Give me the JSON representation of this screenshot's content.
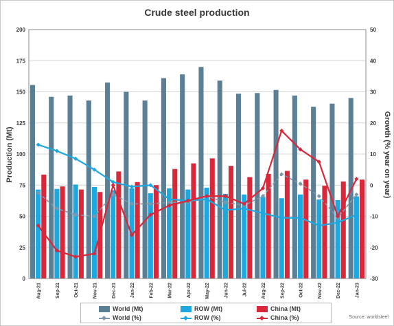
{
  "chart_data": {
    "type": "bar",
    "title": "Crude steel production",
    "ylabel_left": "Production (Mt)",
    "ylabel_right": "Growth (% year on year)",
    "ylim_left": [
      0,
      200
    ],
    "ylim_right": [
      -30,
      50
    ],
    "yticks_left": [
      "0",
      "25",
      "50",
      "75",
      "100",
      "125",
      "150",
      "175",
      "200"
    ],
    "yticks_right": [
      "-30",
      "-20",
      "-10",
      "0",
      "10",
      "20",
      "30",
      "40",
      "50"
    ],
    "categories": [
      "Aug-21",
      "Sep-21",
      "Oct-21",
      "Nov-21",
      "Dec-21",
      "Jan-22",
      "Feb-22",
      "Mar-22",
      "Apr-22",
      "May-22",
      "Jun-22",
      "Jul-22",
      "Aug-22",
      "Sep-22",
      "Oct-22",
      "Nov-22",
      "Dec-22",
      "Jan-23"
    ],
    "bar_series": [
      {
        "name": "World (Mt)",
        "color": "#5b7f95",
        "values": [
          155.5,
          146,
          147,
          143,
          157.5,
          150,
          143,
          161,
          164,
          170,
          159,
          148.5,
          149,
          151.5,
          147,
          138,
          140.5,
          145
        ]
      },
      {
        "name": "ROW (Mt)",
        "color": "#1ea8e0",
        "values": [
          71.5,
          72,
          75.5,
          73.5,
          71,
          72.5,
          68.5,
          72.5,
          71.5,
          73,
          68,
          67.5,
          65.5,
          64.5,
          67.5,
          63.5,
          63,
          66
        ]
      },
      {
        "name": "China (Mt)",
        "color": "#d8283a",
        "values": [
          83.5,
          74,
          71.5,
          69.5,
          86,
          77.5,
          75,
          88,
          92.5,
          96.5,
          90.5,
          81.5,
          84,
          86.5,
          79.5,
          74.5,
          78,
          79.5
        ]
      }
    ],
    "line_series": [
      {
        "name": "World (%)",
        "color": "#7d98ab",
        "values": [
          -2.5,
          -7.5,
          -9.5,
          -10,
          -3,
          -6,
          -6,
          -5.5,
          -5.5,
          -3.5,
          -5.5,
          -6.5,
          -3.5,
          3.5,
          0.5,
          -3.5,
          -10.5,
          -3
        ]
      },
      {
        "name": "ROW (%)",
        "color": "#1ea8e0",
        "values": [
          13,
          11,
          8.5,
          5,
          1,
          -0.5,
          0,
          -4.5,
          -5,
          -4.5,
          -8,
          -7.5,
          -9,
          -10.5,
          -10.5,
          -13,
          -12,
          -9.5
        ]
      },
      {
        "name": "China (%)",
        "color": "#d8283a",
        "values": [
          -13,
          -21,
          -23,
          -22,
          0,
          -16,
          -9.5,
          -6.5,
          -5,
          -3.5,
          -3.5,
          -6,
          -1,
          17.5,
          11.5,
          7.5,
          -10,
          2
        ]
      }
    ],
    "grid": true,
    "legend_position": "bottom",
    "source": "Source: worldsteel"
  }
}
